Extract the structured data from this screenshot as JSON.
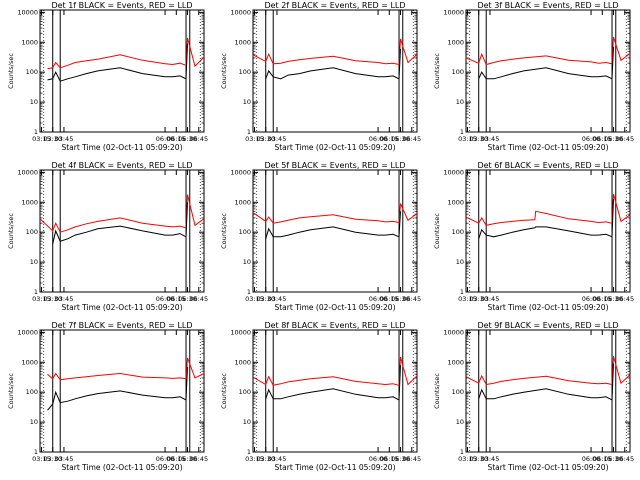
{
  "figure": {
    "colors": {
      "events": "#000000",
      "lld": "#ff0000",
      "axes": "#000000",
      "background": "#ffffff"
    }
  },
  "chart_data": [
    {
      "type": "line",
      "title": "Det 1f BLACK = Events, RED = LLD",
      "xlabel": "Start Time (02-Oct-11 05:09:20)",
      "ylabel": "Counts/sec",
      "yscale": "log",
      "ylim": [
        1,
        12000
      ],
      "xlim": [
        "03:13",
        "06:52"
      ],
      "x_tick_labels": [
        "03:15",
        "03:30",
        "03:45",
        "06:00",
        "06:15",
        "06:30",
        "06:45"
      ],
      "y_tick_labels": [
        "1",
        "10",
        "100",
        "1000",
        "10000"
      ],
      "vertical_markers": [
        "03:30",
        "03:40",
        "06:28",
        "06:33"
      ],
      "x": [
        "03:23",
        "03:30",
        "03:34",
        "03:40",
        "03:50",
        "04:00",
        "04:15",
        "04:30",
        "05:00",
        "05:30",
        "06:00",
        "06:10",
        "06:20",
        "06:28",
        "06:30",
        "06:40",
        "06:52"
      ],
      "series": [
        {
          "name": "LLD",
          "values": [
            130,
            140,
            210,
            140,
            170,
            210,
            240,
            270,
            380,
            250,
            190,
            180,
            200,
            170,
            1400,
            160,
            320
          ]
        },
        {
          "name": "Events",
          "values": [
            55,
            60,
            100,
            50,
            60,
            70,
            90,
            110,
            140,
            90,
            70,
            70,
            75,
            60,
            900,
            null,
            null
          ]
        }
      ]
    },
    {
      "type": "line",
      "title": "Det 2f BLACK = Events, RED = LLD",
      "xlabel": "Start Time (02-Oct-11 05:09:20)",
      "ylabel": "Counts/sec",
      "yscale": "log",
      "ylim": [
        1,
        12000
      ],
      "xlim": [
        "03:13",
        "06:52"
      ],
      "x_tick_labels": [
        "03:15",
        "03:30",
        "03:45",
        "06:00",
        "06:15",
        "06:30",
        "06:45"
      ],
      "y_tick_labels": [
        "1",
        "10",
        "100",
        "1000",
        "10000"
      ],
      "vertical_markers": [
        "03:30",
        "03:40",
        "06:28",
        "06:33"
      ],
      "x": [
        "03:13",
        "03:30",
        "03:34",
        "03:40",
        "03:50",
        "04:00",
        "04:15",
        "04:30",
        "05:00",
        "05:30",
        "06:00",
        "06:10",
        "06:20",
        "06:28",
        "06:30",
        "06:40",
        "06:52"
      ],
      "series": [
        {
          "name": "LLD",
          "values": [
            380,
            230,
            400,
            190,
            200,
            230,
            260,
            290,
            340,
            240,
            210,
            190,
            200,
            180,
            1300,
            210,
            400
          ]
        },
        {
          "name": "Events",
          "values": [
            null,
            60,
            110,
            70,
            60,
            80,
            90,
            110,
            140,
            90,
            70,
            70,
            75,
            60,
            600,
            null,
            null
          ]
        }
      ]
    },
    {
      "type": "line",
      "title": "Det 3f BLACK = Events, RED = LLD",
      "xlabel": "Start Time (02-Oct-11 05:09:20)",
      "ylabel": "Counts/sec",
      "yscale": "log",
      "ylim": [
        1,
        12000
      ],
      "xlim": [
        "03:13",
        "06:52"
      ],
      "x_tick_labels": [
        "03:15",
        "03:30",
        "03:45",
        "06:00",
        "06:15",
        "06:30",
        "06:45"
      ],
      "y_tick_labels": [
        "1",
        "10",
        "100",
        "1000",
        "10000"
      ],
      "vertical_markers": [
        "03:30",
        "03:40",
        "06:28",
        "06:33"
      ],
      "x": [
        "03:13",
        "03:30",
        "03:34",
        "03:40",
        "03:50",
        "04:00",
        "04:15",
        "04:30",
        "05:00",
        "05:30",
        "06:00",
        "06:10",
        "06:20",
        "06:28",
        "06:30",
        "06:40",
        "06:52"
      ],
      "series": [
        {
          "name": "LLD",
          "values": [
            300,
            200,
            400,
            180,
            210,
            240,
            270,
            300,
            350,
            250,
            220,
            200,
            210,
            190,
            1500,
            250,
            420
          ]
        },
        {
          "name": "Events",
          "values": [
            null,
            60,
            100,
            60,
            60,
            70,
            90,
            110,
            140,
            90,
            70,
            70,
            75,
            60,
            700,
            null,
            null
          ]
        }
      ]
    },
    {
      "type": "line",
      "title": "Det 4f BLACK = Events, RED = LLD",
      "xlabel": "Start Time (02-Oct-11 05:09:20)",
      "ylabel": "Counts/sec",
      "yscale": "log",
      "ylim": [
        1,
        12000
      ],
      "xlim": [
        "03:13",
        "06:52"
      ],
      "x_tick_labels": [
        "03:15",
        "03:30",
        "03:45",
        "06:00",
        "06:15",
        "06:30",
        "06:45"
      ],
      "y_tick_labels": [
        "1",
        "10",
        "100",
        "1000",
        "10000"
      ],
      "vertical_markers": [
        "03:30",
        "03:40",
        "06:28",
        "06:33"
      ],
      "x": [
        "03:13",
        "03:30",
        "03:34",
        "03:40",
        "03:50",
        "04:00",
        "04:15",
        "04:30",
        "05:00",
        "05:30",
        "06:00",
        "06:10",
        "06:20",
        "06:28",
        "06:30",
        "06:40",
        "06:52"
      ],
      "series": [
        {
          "name": "LLD",
          "values": [
            280,
            110,
            200,
            100,
            120,
            150,
            190,
            230,
            300,
            200,
            160,
            150,
            160,
            140,
            1800,
            170,
            280
          ]
        },
        {
          "name": "Events",
          "values": [
            null,
            40,
            110,
            50,
            60,
            80,
            100,
            130,
            160,
            110,
            80,
            80,
            90,
            70,
            1000,
            null,
            null
          ]
        }
      ]
    },
    {
      "type": "line",
      "title": "Det 5f BLACK = Events, RED = LLD",
      "xlabel": "Start Time (02-Oct-11 05:09:20)",
      "ylabel": "Counts/sec",
      "yscale": "log",
      "ylim": [
        1,
        12000
      ],
      "xlim": [
        "03:13",
        "06:52"
      ],
      "x_tick_labels": [
        "03:15",
        "03:30",
        "03:45",
        "06:00",
        "06:15",
        "06:30",
        "06:45"
      ],
      "y_tick_labels": [
        "1",
        "10",
        "100",
        "1000",
        "10000"
      ],
      "vertical_markers": [
        "03:30",
        "03:40",
        "06:28",
        "06:33"
      ],
      "x": [
        "03:13",
        "03:30",
        "03:34",
        "03:40",
        "03:50",
        "04:00",
        "04:15",
        "04:30",
        "05:00",
        "05:30",
        "06:00",
        "06:10",
        "06:20",
        "06:28",
        "06:30",
        "06:40",
        "06:52"
      ],
      "series": [
        {
          "name": "LLD",
          "values": [
            450,
            230,
            320,
            200,
            220,
            250,
            300,
            330,
            380,
            270,
            240,
            220,
            230,
            210,
            900,
            250,
            420
          ]
        },
        {
          "name": "Events",
          "values": [
            null,
            60,
            130,
            70,
            70,
            80,
            100,
            120,
            150,
            100,
            80,
            80,
            85,
            70,
            500,
            null,
            null
          ]
        }
      ]
    },
    {
      "type": "line",
      "title": "Det 6f BLACK = Events, RED = LLD",
      "xlabel": "Start Time (02-Oct-11 05:09:20)",
      "ylabel": "Counts/sec",
      "yscale": "log",
      "ylim": [
        1,
        12000
      ],
      "xlim": [
        "03:13",
        "06:52"
      ],
      "x_tick_labels": [
        "03:15",
        "03:30",
        "03:45",
        "06:00",
        "06:15",
        "06:30",
        "06:45"
      ],
      "y_tick_labels": [
        "1",
        "10",
        "100",
        "1000",
        "10000"
      ],
      "vertical_markers": [
        "03:30",
        "03:40",
        "06:28",
        "06:33"
      ],
      "x": [
        "03:13",
        "03:30",
        "03:34",
        "03:40",
        "03:50",
        "04:00",
        "04:15",
        "04:30",
        "04:45",
        "04:46",
        "05:00",
        "05:30",
        "06:00",
        "06:10",
        "06:20",
        "06:28",
        "06:30",
        "06:40",
        "06:52"
      ],
      "series": [
        {
          "name": "LLD",
          "values": [
            320,
            200,
            300,
            170,
            190,
            210,
            230,
            250,
            260,
            500,
            420,
            280,
            230,
            210,
            220,
            200,
            1900,
            230,
            380
          ]
        },
        {
          "name": "Events",
          "values": [
            null,
            60,
            120,
            80,
            70,
            80,
            100,
            120,
            140,
            150,
            150,
            110,
            80,
            80,
            85,
            70,
            1300,
            null,
            null
          ]
        }
      ]
    },
    {
      "type": "line",
      "title": "Det 7f BLACK = Events, RED = LLD",
      "xlabel": "Start Time (02-Oct-11 05:09:20)",
      "ylabel": "Counts/sec",
      "yscale": "log",
      "ylim": [
        1,
        12000
      ],
      "xlim": [
        "03:13",
        "06:52"
      ],
      "x_tick_labels": [
        "03:15",
        "03:30",
        "03:45",
        "06:00",
        "06:15",
        "06:30",
        "06:45"
      ],
      "y_tick_labels": [
        "1",
        "10",
        "100",
        "1000",
        "10000"
      ],
      "vertical_markers": [
        "03:30",
        "03:40",
        "06:28",
        "06:33"
      ],
      "x": [
        "03:23",
        "03:30",
        "03:34",
        "03:40",
        "03:50",
        "04:00",
        "04:15",
        "04:30",
        "05:00",
        "05:30",
        "06:00",
        "06:10",
        "06:20",
        "06:28",
        "06:30",
        "06:40",
        "06:52"
      ],
      "series": [
        {
          "name": "LLD",
          "values": [
            400,
            280,
            420,
            260,
            280,
            300,
            330,
            360,
            420,
            320,
            300,
            290,
            300,
            280,
            1400,
            300,
            420
          ]
        },
        {
          "name": "Events",
          "values": [
            25,
            40,
            100,
            45,
            50,
            60,
            75,
            90,
            110,
            80,
            65,
            65,
            70,
            55,
            700,
            null,
            null
          ]
        }
      ]
    },
    {
      "type": "line",
      "title": "Det 8f BLACK = Events, RED = LLD",
      "xlabel": "Start Time (02-Oct-11 05:09:20)",
      "ylabel": "Counts/sec",
      "yscale": "log",
      "ylim": [
        1,
        12000
      ],
      "xlim": [
        "03:13",
        "06:52"
      ],
      "x_tick_labels": [
        "03:15",
        "03:30",
        "03:45",
        "06:00",
        "06:15",
        "06:30",
        "06:45"
      ],
      "y_tick_labels": [
        "1",
        "10",
        "100",
        "1000",
        "10000"
      ],
      "vertical_markers": [
        "03:30",
        "03:40",
        "06:28",
        "06:33"
      ],
      "x": [
        "03:13",
        "03:30",
        "03:34",
        "03:40",
        "03:50",
        "04:00",
        "04:15",
        "04:30",
        "05:00",
        "05:30",
        "06:00",
        "06:10",
        "06:20",
        "06:28",
        "06:30",
        "06:40",
        "06:52"
      ],
      "series": [
        {
          "name": "LLD",
          "values": [
            320,
            180,
            330,
            170,
            190,
            220,
            250,
            280,
            330,
            230,
            190,
            180,
            190,
            170,
            1500,
            180,
            350
          ]
        },
        {
          "name": "Events",
          "values": [
            null,
            60,
            120,
            60,
            60,
            70,
            85,
            100,
            130,
            85,
            65,
            65,
            70,
            55,
            800,
            null,
            null
          ]
        }
      ]
    },
    {
      "type": "line",
      "title": "Det 9f BLACK = Events, RED = LLD",
      "xlabel": "Start Time (02-Oct-11 05:09:20)",
      "ylabel": "Counts/sec",
      "yscale": "log",
      "ylim": [
        1,
        12000
      ],
      "xlim": [
        "03:13",
        "06:52"
      ],
      "x_tick_labels": [
        "03:15",
        "03:30",
        "03:45",
        "06:00",
        "06:15",
        "06:30",
        "06:45"
      ],
      "y_tick_labels": [
        "1",
        "10",
        "100",
        "1000",
        "10000"
      ],
      "vertical_markers": [
        "03:30",
        "03:40",
        "06:28",
        "06:33"
      ],
      "x": [
        "03:13",
        "03:30",
        "03:34",
        "03:40",
        "03:50",
        "04:00",
        "04:15",
        "04:30",
        "05:00",
        "05:30",
        "06:00",
        "06:10",
        "06:20",
        "06:28",
        "06:30",
        "06:40",
        "06:52"
      ],
      "series": [
        {
          "name": "LLD",
          "values": [
            330,
            200,
            350,
            180,
            200,
            230,
            260,
            290,
            340,
            240,
            200,
            190,
            200,
            180,
            1600,
            200,
            380
          ]
        },
        {
          "name": "Events",
          "values": [
            null,
            60,
            120,
            60,
            60,
            70,
            85,
            100,
            130,
            85,
            65,
            65,
            70,
            55,
            900,
            null,
            null
          ]
        }
      ]
    }
  ]
}
